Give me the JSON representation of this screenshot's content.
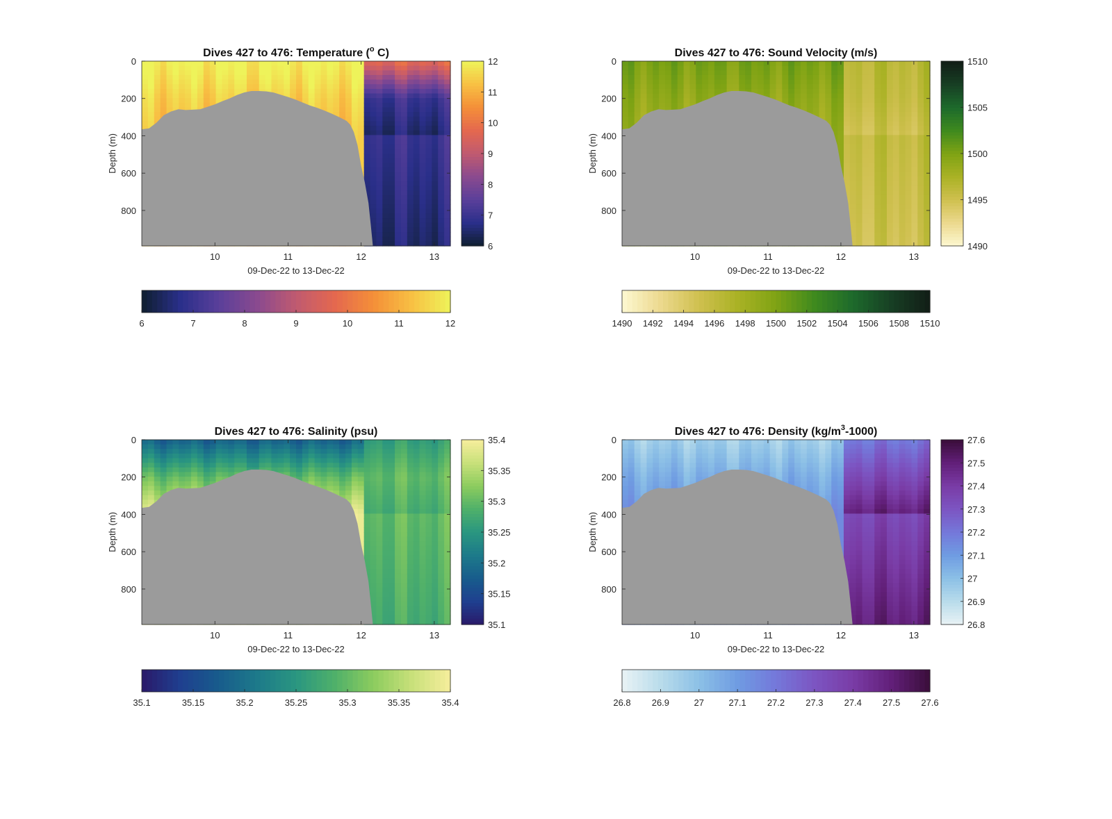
{
  "figure": {
    "background": "#ffffff",
    "land_color": "#9b9b9b"
  },
  "chart_data": [
    {
      "type": "heatmap",
      "panel": "temperature",
      "title": "Dives 427 to 476: Temperature (",
      "title_sup": "o",
      "title_suffix": " C)",
      "ylabel": "Depth (m)",
      "xlabel": "09-Dec-22 to 13-Dec-22",
      "x_range": [
        9.0,
        13.22
      ],
      "x_ticks": [
        10,
        11,
        12,
        13
      ],
      "x_tick_labels": [
        "10",
        "11",
        "12",
        "13"
      ],
      "y_range": [
        0,
        990
      ],
      "y_reversed": true,
      "y_ticks": [
        0,
        200,
        400,
        600,
        800
      ],
      "y_tick_labels": [
        "0",
        "200",
        "400",
        "600",
        "800"
      ],
      "clim": [
        6,
        12
      ],
      "colorbar_ticks": [
        6,
        7,
        8,
        9,
        10,
        11,
        12
      ],
      "colorbar_tick_labels": [
        "6",
        "7",
        "8",
        "9",
        "10",
        "11",
        "12"
      ],
      "colormap": [
        "#0f1f2f",
        "#2a2f8a",
        "#5a3f9a",
        "#8a4a8f",
        "#c05a70",
        "#e4684f",
        "#f48f38",
        "#f8c043",
        "#eef35a"
      ],
      "profile_surface": [
        12,
        11.5,
        11.2
      ],
      "profile_deep": [
        9.8,
        7.0,
        6.5
      ]
    },
    {
      "type": "heatmap",
      "panel": "sound-velocity",
      "title": "Dives 427 to 476: Sound Velocity (m/s)",
      "ylabel": "Depth (m)",
      "xlabel": "09-Dec-22 to 13-Dec-22",
      "x_range": [
        9.0,
        13.22
      ],
      "x_ticks": [
        10,
        11,
        12,
        13
      ],
      "x_tick_labels": [
        "10",
        "11",
        "12",
        "13"
      ],
      "y_range": [
        0,
        990
      ],
      "y_reversed": true,
      "y_ticks": [
        0,
        200,
        400,
        600,
        800
      ],
      "y_tick_labels": [
        "0",
        "200",
        "400",
        "600",
        "800"
      ],
      "clim": [
        1490,
        1510
      ],
      "colorbar_ticks": [
        1490,
        1492,
        1494,
        1496,
        1498,
        1500,
        1502,
        1504,
        1506,
        1508,
        1510
      ],
      "colorbar_tick_labels": [
        "1490",
        "1492",
        "1494",
        "1496",
        "1498",
        "1500",
        "1502",
        "1504",
        "1506",
        "1508",
        "1510"
      ],
      "colorbar_v_ticks": [
        1490,
        1495,
        1500,
        1505,
        1510
      ],
      "colorbar_v_tick_labels": [
        "1490",
        "1495",
        "1500",
        "1505",
        "1510"
      ],
      "colormap": [
        "#fdf8d2",
        "#ecd98e",
        "#cfc04f",
        "#aab225",
        "#7fa314",
        "#3f8a1e",
        "#1d6a2c",
        "#173f24",
        "#121d16"
      ],
      "profile_surface": [
        1500.3,
        1499.0,
        1498.2
      ],
      "profile_deep": [
        1496.5,
        1496.0,
        1495.0
      ]
    },
    {
      "type": "heatmap",
      "panel": "salinity",
      "title": "Dives 427 to 476: Salinity (psu)",
      "ylabel": "Depth (m)",
      "xlabel": "09-Dec-22 to 13-Dec-22",
      "x_range": [
        9.0,
        13.22
      ],
      "x_ticks": [
        10,
        11,
        12,
        13
      ],
      "x_tick_labels": [
        "10",
        "11",
        "12",
        "13"
      ],
      "y_range": [
        0,
        990
      ],
      "y_reversed": true,
      "y_ticks": [
        0,
        200,
        400,
        600,
        800
      ],
      "y_tick_labels": [
        "0",
        "200",
        "400",
        "600",
        "800"
      ],
      "clim": [
        35.1,
        35.4
      ],
      "colorbar_ticks": [
        35.1,
        35.15,
        35.2,
        35.25,
        35.3,
        35.35,
        35.4
      ],
      "colorbar_tick_labels": [
        "35.1",
        "35.15",
        "35.2",
        "35.25",
        "35.3",
        "35.35",
        "35.4"
      ],
      "colormap": [
        "#2a1a6a",
        "#1f3f8f",
        "#185c8c",
        "#1d7a8a",
        "#2a9680",
        "#4fb06a",
        "#8ccc5e",
        "#c8e07a",
        "#f6ee9c"
      ],
      "profile_surface": [
        35.18,
        35.3,
        35.38
      ],
      "profile_deep": [
        35.26,
        35.3,
        35.28
      ]
    },
    {
      "type": "heatmap",
      "panel": "density",
      "title": "Dives 427 to 476: Density (kg/m",
      "title_sup": "3",
      "title_suffix": "-1000)",
      "ylabel": "Depth (m)",
      "xlabel": "09-Dec-22 to 13-Dec-22",
      "x_range": [
        9.0,
        13.22
      ],
      "x_ticks": [
        10,
        11,
        12,
        13
      ],
      "x_tick_labels": [
        "10",
        "11",
        "12",
        "13"
      ],
      "y_range": [
        0,
        990
      ],
      "y_reversed": true,
      "y_ticks": [
        0,
        200,
        400,
        600,
        800
      ],
      "y_tick_labels": [
        "0",
        "200",
        "400",
        "600",
        "800"
      ],
      "clim": [
        26.8,
        27.6
      ],
      "colorbar_ticks": [
        26.8,
        26.9,
        27.0,
        27.1,
        27.2,
        27.3,
        27.4,
        27.5,
        27.6
      ],
      "colorbar_tick_labels": [
        "26.8",
        "26.9",
        "27",
        "27.1",
        "27.2",
        "27.3",
        "27.4",
        "27.5",
        "27.6"
      ],
      "colormap": [
        "#e9f3f5",
        "#b9dceb",
        "#8cc0e6",
        "#6f9ce2",
        "#7478da",
        "#7c55c2",
        "#7a3ca6",
        "#621f79",
        "#3a0e3a"
      ],
      "profile_surface": [
        26.95,
        27.05,
        27.12
      ],
      "profile_deep": [
        27.2,
        27.35,
        27.5
      ]
    }
  ],
  "bathymetry": {
    "x": [
      9.0,
      9.1,
      9.2,
      9.3,
      9.4,
      9.5,
      9.6,
      9.7,
      9.8,
      9.9,
      10.0,
      10.1,
      10.2,
      10.3,
      10.4,
      10.5,
      10.6,
      10.7,
      10.8,
      10.9,
      11.0,
      11.1,
      11.2,
      11.3,
      11.4,
      11.5,
      11.6,
      11.7,
      11.8,
      11.85,
      11.9,
      11.95,
      12.0,
      12.05,
      12.1,
      12.13,
      12.16
    ],
    "depth": [
      365,
      360,
      330,
      290,
      270,
      258,
      262,
      260,
      258,
      245,
      232,
      215,
      200,
      182,
      168,
      160,
      160,
      162,
      168,
      180,
      192,
      206,
      222,
      238,
      250,
      265,
      282,
      300,
      320,
      340,
      380,
      450,
      560,
      650,
      760,
      870,
      990
    ]
  }
}
